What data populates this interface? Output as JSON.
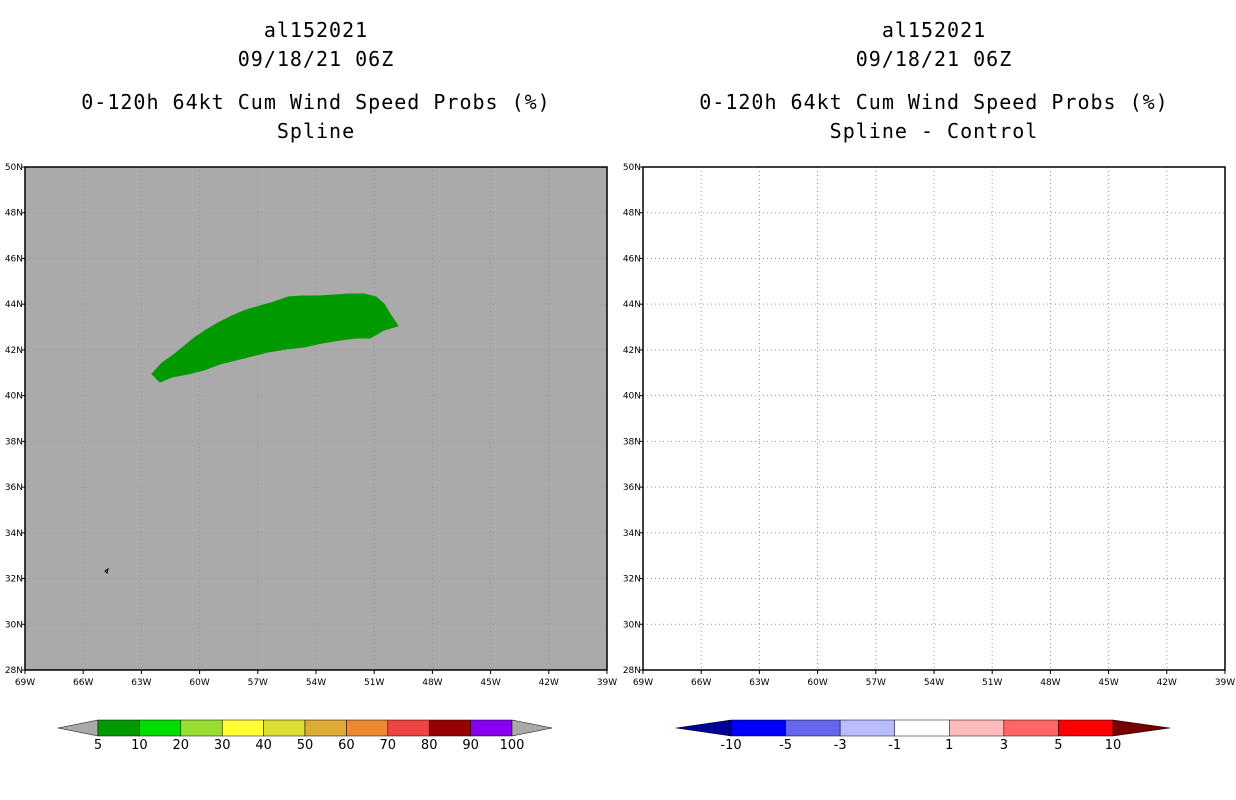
{
  "left_panel": {
    "storm_id": "al152021",
    "datetime": "09/18/21 06Z",
    "product": "0-120h 64kt Cum Wind Speed Probs (%)",
    "subtitle": "Spline",
    "background_color": "#aaaaaa",
    "probability_region_color": "#009900"
  },
  "right_panel": {
    "storm_id": "al152021",
    "datetime": "09/18/21 06Z",
    "product": "0-120h 64kt Cum Wind Speed Probs (%)",
    "subtitle": "Spline - Control",
    "background_color": "#ffffff"
  },
  "map": {
    "lon_range": [
      -69,
      -39
    ],
    "lat_range": [
      28,
      50
    ],
    "lon_ticks": [
      "69W",
      "66W",
      "63W",
      "60W",
      "57W",
      "54W",
      "51W",
      "48W",
      "45W",
      "42W",
      "39W"
    ],
    "lat_ticks": [
      "28N",
      "30N",
      "32N",
      "34N",
      "36N",
      "38N",
      "40N",
      "42N",
      "44N",
      "46N",
      "48N",
      "50N"
    ]
  },
  "left_colorbar": {
    "labels": [
      "5",
      "10",
      "20",
      "30",
      "40",
      "50",
      "60",
      "70",
      "80",
      "90",
      "100"
    ],
    "colors": [
      "#009900",
      "#00dd00",
      "#99dd33",
      "#ffff33",
      "#dddd33",
      "#ddaa33",
      "#ee8833",
      "#ee4444",
      "#990000",
      "#8800ee"
    ],
    "end_color": "#aaaaaa"
  },
  "right_colorbar": {
    "labels": [
      "-10",
      "-5",
      "-3",
      "-1",
      "1",
      "3",
      "5",
      "10"
    ],
    "colors": [
      "#0000ff",
      "#6666ee",
      "#bbbbff",
      "#ffffff",
      "#ffbbbb",
      "#ff6666",
      "#ff0000"
    ],
    "low_end_color": "#000099",
    "high_end_color": "#770000"
  }
}
